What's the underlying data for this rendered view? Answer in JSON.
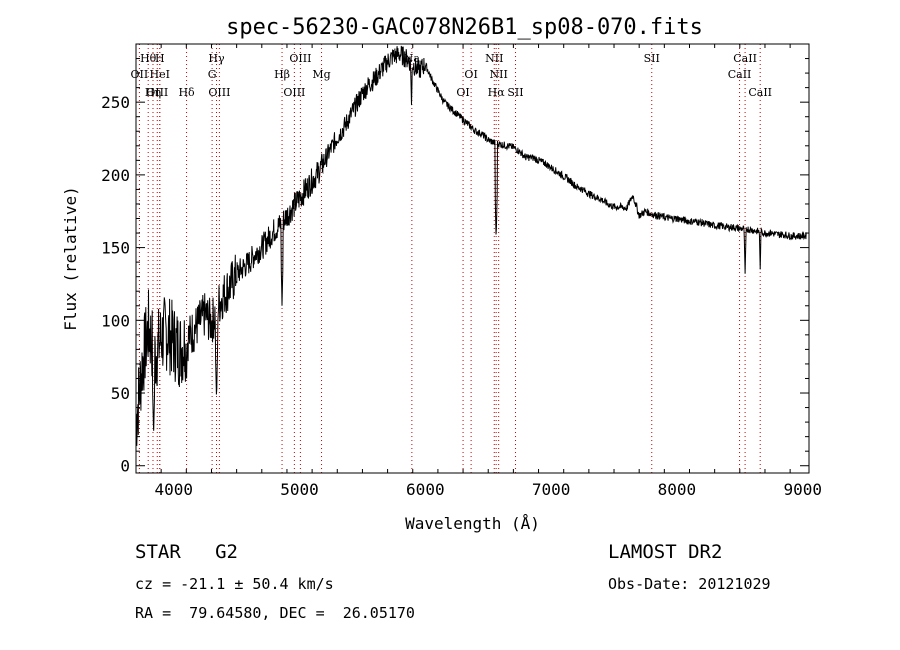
{
  "chart_data": {
    "type": "line",
    "title": "spec-56230-GAC078N26B1_sp08-070.fits",
    "xlabel": "Wavelength (Å)",
    "ylabel": "Flux (relative)",
    "xlim": [
      3700,
      9050
    ],
    "ylim": [
      -5,
      290
    ],
    "xticks": [
      4000,
      5000,
      6000,
      7000,
      8000,
      9000
    ],
    "yticks": [
      0,
      50,
      100,
      150,
      200,
      250
    ],
    "grid": false,
    "series": [
      {
        "color": "#000000",
        "x": [
          3700,
          3750,
          3800,
          3850,
          3900,
          3950,
          4000,
          4050,
          4100,
          4150,
          4200,
          4250,
          4300,
          4350,
          4400,
          4450,
          4500,
          4550,
          4600,
          4650,
          4700,
          4750,
          4800,
          4850,
          4900,
          4950,
          5000,
          5050,
          5100,
          5150,
          5200,
          5250,
          5300,
          5350,
          5400,
          5450,
          5500,
          5550,
          5600,
          5650,
          5700,
          5750,
          5800,
          5850,
          5900,
          5950,
          6000,
          6050,
          6100,
          6150,
          6200,
          6250,
          6300,
          6350,
          6400,
          6450,
          6500,
          6550,
          6600,
          6650,
          6700,
          6750,
          6800,
          6850,
          6900,
          6950,
          7000,
          7050,
          7100,
          7150,
          7200,
          7250,
          7300,
          7350,
          7400,
          7450,
          7500,
          7550,
          7600,
          7650,
          7700,
          7750,
          7800,
          7850,
          7900,
          7950,
          8000,
          8050,
          8100,
          8150,
          8200,
          8250,
          8300,
          8350,
          8400,
          8450,
          8500,
          8550,
          8600,
          8650,
          8700,
          8750,
          8800,
          8850,
          8900,
          8950,
          9000,
          9030
        ],
        "y": [
          30,
          70,
          95,
          75,
          88,
          92,
          85,
          80,
          86,
          92,
          98,
          104,
          98,
          110,
          118,
          124,
          132,
          136,
          140,
          146,
          150,
          156,
          162,
          166,
          172,
          178,
          184,
          190,
          196,
          202,
          210,
          218,
          226,
          232,
          240,
          248,
          256,
          262,
          266,
          272,
          278,
          282,
          283,
          280,
          276,
          272,
          276,
          266,
          258,
          250,
          246,
          242,
          238,
          234,
          230,
          228,
          224,
          222,
          221,
          220,
          219,
          216,
          212,
          212,
          210,
          208,
          205,
          202,
          199,
          196,
          192,
          190,
          187,
          185,
          183,
          180,
          178,
          178,
          177,
          186,
          172,
          175,
          173,
          172,
          171,
          170,
          170,
          169,
          168,
          168,
          167,
          166,
          165,
          165,
          164,
          164,
          163,
          163,
          162,
          161,
          160,
          160,
          159,
          159,
          158,
          158,
          158,
          158
        ]
      }
    ],
    "absorption_features": [
      {
        "x": 3840,
        "y": 20
      },
      {
        "x": 4102,
        "y": 60
      },
      {
        "x": 4340,
        "y": 45
      },
      {
        "x": 4861,
        "y": 110
      },
      {
        "x": 5890,
        "y": 248
      },
      {
        "x": 6563,
        "y": 155
      },
      {
        "x": 8542,
        "y": 132
      },
      {
        "x": 8662,
        "y": 135
      }
    ],
    "line_markers": [
      {
        "label": "Hθ",
        "x": 3797,
        "row": 0
      },
      {
        "label": "H",
        "x": 3889,
        "row": 0
      },
      {
        "label": "OII",
        "x": 3727,
        "row": 1
      },
      {
        "label": "HeI",
        "x": 3889,
        "row": 1
      },
      {
        "label": "OIII",
        "x": 3869,
        "row": 2
      },
      {
        "label": "Hη",
        "x": 3835,
        "row": 2
      },
      {
        "label": "Hδ",
        "x": 4102,
        "row": 2
      },
      {
        "label": "Hγ",
        "x": 4340,
        "row": 0
      },
      {
        "label": "G",
        "x": 4305,
        "row": 1
      },
      {
        "label": "OIII",
        "x": 4363,
        "row": 2
      },
      {
        "label": "OIII",
        "x": 5007,
        "row": 0
      },
      {
        "label": "Hβ",
        "x": 4861,
        "row": 1
      },
      {
        "label": "Mg",
        "x": 5175,
        "row": 1
      },
      {
        "label": "OIII",
        "x": 4959,
        "row": 2
      },
      {
        "label": "Na",
        "x": 5893,
        "row": 0
      },
      {
        "label": "NII",
        "x": 6548,
        "row": 0
      },
      {
        "label": "OI",
        "x": 6364,
        "row": 1
      },
      {
        "label": "NII",
        "x": 6583,
        "row": 1
      },
      {
        "label": "OI",
        "x": 6300,
        "row": 2
      },
      {
        "label": "Hα",
        "x": 6563,
        "row": 2
      },
      {
        "label": "SII",
        "x": 6717,
        "row": 2
      },
      {
        "label": "SII",
        "x": 7800,
        "row": 0
      },
      {
        "label": "CaII",
        "x": 8542,
        "row": 0
      },
      {
        "label": "CaII",
        "x": 8498,
        "row": 1
      },
      {
        "label": "CaII",
        "x": 8662,
        "row": 2
      }
    ],
    "marker_color": "#cc0000"
  },
  "footer": {
    "object_class": "STAR   G2",
    "survey": "LAMOST DR2",
    "cz": "cz = -21.1 ± 50.4 km/s",
    "obs_date": "Obs-Date: 20121029",
    "radec": "RA =  79.64580, DEC =  26.05170"
  }
}
